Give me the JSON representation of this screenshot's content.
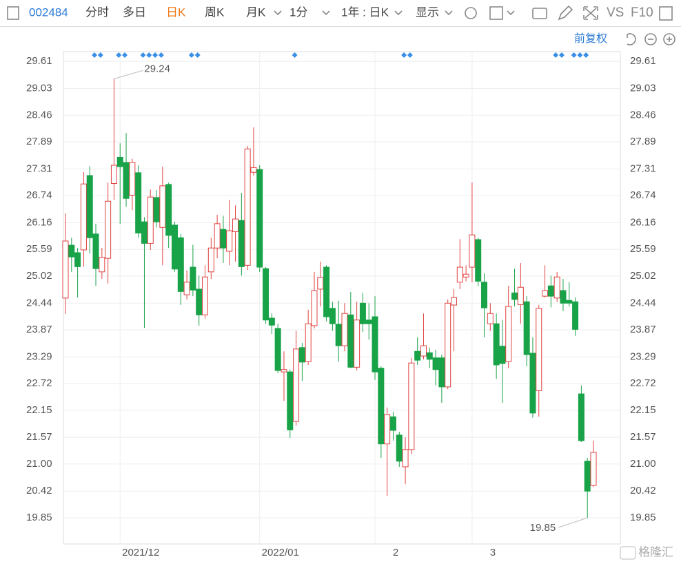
{
  "toolbar": {
    "symbol": "002484",
    "tabs": [
      "分时",
      "多日",
      "日K",
      "周K",
      "月K",
      "1分",
      "1年 : 日K",
      "显示"
    ],
    "vs": "VS",
    "f10": "F10",
    "adjust": "前复权",
    "watermark": "格隆汇"
  },
  "chart_data": {
    "type": "candlestick",
    "categories": [
      null,
      null,
      null,
      null,
      null,
      null,
      null,
      null,
      null,
      "2021/12",
      null,
      null,
      null,
      null,
      null,
      null,
      null,
      null,
      null,
      null,
      null,
      null,
      null,
      null,
      null,
      null,
      null,
      null,
      null,
      null,
      null,
      null,
      "2022/01",
      null,
      null,
      null,
      null,
      null,
      null,
      null,
      null,
      null,
      null,
      null,
      null,
      null,
      null,
      null,
      null,
      null,
      null,
      "2",
      null,
      null,
      null,
      null,
      null,
      null,
      null,
      null,
      null,
      null,
      null,
      null,
      null,
      null,
      null,
      "3",
      null,
      null,
      null,
      null,
      null,
      null,
      null,
      null,
      null,
      null,
      null,
      null,
      null,
      null,
      null,
      null,
      null,
      null,
      null,
      null
    ],
    "open": [
      24.55,
      25.68,
      25.52,
      25.58,
      27.17,
      25.92,
      25.11,
      25.4,
      27.0,
      27.56,
      27.45,
      26.75,
      27.23,
      26.18,
      25.72,
      26.7,
      26.06,
      26.98,
      26.11,
      25.84,
      24.62,
      25.21,
      24.74,
      24.19,
      25.11,
      25.62,
      26.02,
      25.55,
      25.97,
      26.21,
      25.25,
      27.24,
      27.3,
      25.18,
      24.12,
      23.9,
      22.97,
      22.97,
      21.91,
      23.49,
      23.19,
      23.96,
      24.74,
      25.21,
      24.33,
      23.99,
      23.53,
      24.19,
      23.07,
      24.44,
      24.08,
      24.15,
      23.05,
      21.43,
      22.01,
      21.62,
      20.94,
      21.31,
      23.41,
      23.31,
      23.38,
      23.27,
      23.27,
      22.65,
      24.4,
      24.89,
      25.0,
      25.21,
      25.8,
      24.89,
      24.0,
      24.0,
      23.52,
      23.19,
      24.66,
      24.41,
      24.47,
      23.37,
      22.57,
      24.59,
      24.81,
      24.55,
      24.71,
      24.5,
      24.47,
      22.5,
      21.06,
      20.54
    ],
    "high": [
      26.36,
      25.84,
      25.62,
      27.24,
      27.37,
      26.14,
      25.62,
      27.02,
      29.24,
      27.86,
      28.08,
      27.53,
      27.39,
      26.28,
      26.87,
      26.86,
      27.36,
      27.02,
      26.18,
      25.92,
      25.14,
      25.69,
      25.03,
      25.25,
      25.84,
      26.33,
      26.31,
      26.65,
      26.53,
      26.8,
      27.8,
      28.2,
      27.39,
      25.21,
      24.22,
      24.0,
      23.41,
      23.02,
      23.85,
      23.59,
      24.3,
      25.11,
      25.33,
      25.25,
      24.47,
      24.49,
      24.44,
      24.68,
      24.47,
      24.66,
      24.44,
      24.59,
      23.09,
      22.21,
      22.12,
      21.69,
      21.57,
      23.27,
      23.71,
      24.22,
      23.49,
      23.44,
      23.34,
      24.52,
      24.74,
      25.81,
      25.25,
      27.02,
      25.84,
      25.08,
      24.44,
      24.22,
      24.08,
      24.81,
      25.18,
      25.3,
      24.59,
      23.71,
      24.4,
      25.25,
      25.03,
      25.11,
      24.96,
      24.89,
      24.56,
      22.68,
      21.13,
      21.5
    ],
    "low": [
      24.21,
      25.11,
      24.56,
      25.22,
      25.5,
      24.81,
      24.96,
      24.86,
      26.65,
      26.14,
      26.5,
      26.43,
      25.84,
      23.91,
      25.58,
      26.06,
      25.25,
      25.62,
      25.11,
      24.4,
      24.52,
      24.59,
      23.96,
      24.11,
      24.96,
      25.4,
      25.3,
      25.25,
      25.33,
      25.03,
      25.15,
      27.17,
      25.11,
      24.0,
      23.78,
      22.94,
      22.35,
      21.56,
      21.82,
      22.78,
      23.12,
      23.9,
      24.37,
      24.05,
      23.85,
      23.19,
      23.41,
      23.05,
      23.0,
      23.82,
      23.66,
      22.8,
      21.13,
      20.32,
      21.5,
      20.94,
      20.57,
      21.21,
      23.12,
      23.24,
      23.05,
      22.68,
      22.31,
      22.6,
      23.41,
      24.74,
      24.91,
      24.89,
      24.8,
      23.71,
      23.85,
      22.82,
      22.31,
      23.05,
      24.37,
      24.0,
      23.09,
      21.99,
      22.01,
      24.56,
      24.35,
      24.47,
      24.27,
      24.37,
      23.74,
      21.47,
      19.85,
      20.51
    ],
    "close": [
      25.77,
      25.43,
      25.22,
      26.99,
      25.84,
      25.18,
      25.42,
      26.62,
      27.39,
      27.36,
      26.68,
      27.45,
      25.94,
      25.72,
      26.71,
      26.18,
      26.95,
      25.89,
      25.17,
      24.69,
      24.89,
      24.72,
      24.19,
      25.0,
      25.62,
      26.14,
      25.62,
      25.99,
      26.24,
      25.22,
      27.74,
      27.34,
      25.21,
      24.08,
      23.97,
      23.0,
      23.02,
      21.73,
      23.46,
      23.18,
      24.0,
      24.71,
      24.99,
      24.15,
      24.0,
      23.53,
      24.22,
      23.07,
      24.08,
      24.0,
      24.0,
      22.97,
      21.43,
      22.06,
      21.72,
      21.06,
      21.31,
      23.16,
      23.22,
      23.53,
      23.24,
      23.02,
      22.65,
      24.44,
      24.56,
      25.21,
      25.06,
      25.9,
      24.91,
      24.34,
      24.22,
      23.12,
      23.15,
      24.37,
      24.52,
      24.78,
      23.34,
      22.09,
      24.33,
      24.71,
      24.59,
      25.0,
      24.44,
      24.44,
      23.88,
      21.5,
      20.42,
      21.25
    ],
    "up_color": "#e0423f",
    "down_color": "#19a348",
    "ylim": [
      19.29,
      29.82
    ],
    "yticks": [
      29.61,
      29.03,
      28.46,
      27.89,
      27.31,
      26.74,
      26.16,
      25.59,
      25.02,
      24.44,
      23.87,
      23.29,
      22.72,
      22.15,
      21.57,
      {
        "value": 21,
        "label": "21.00"
      },
      20.42,
      19.85
    ],
    "grid": true
  }
}
